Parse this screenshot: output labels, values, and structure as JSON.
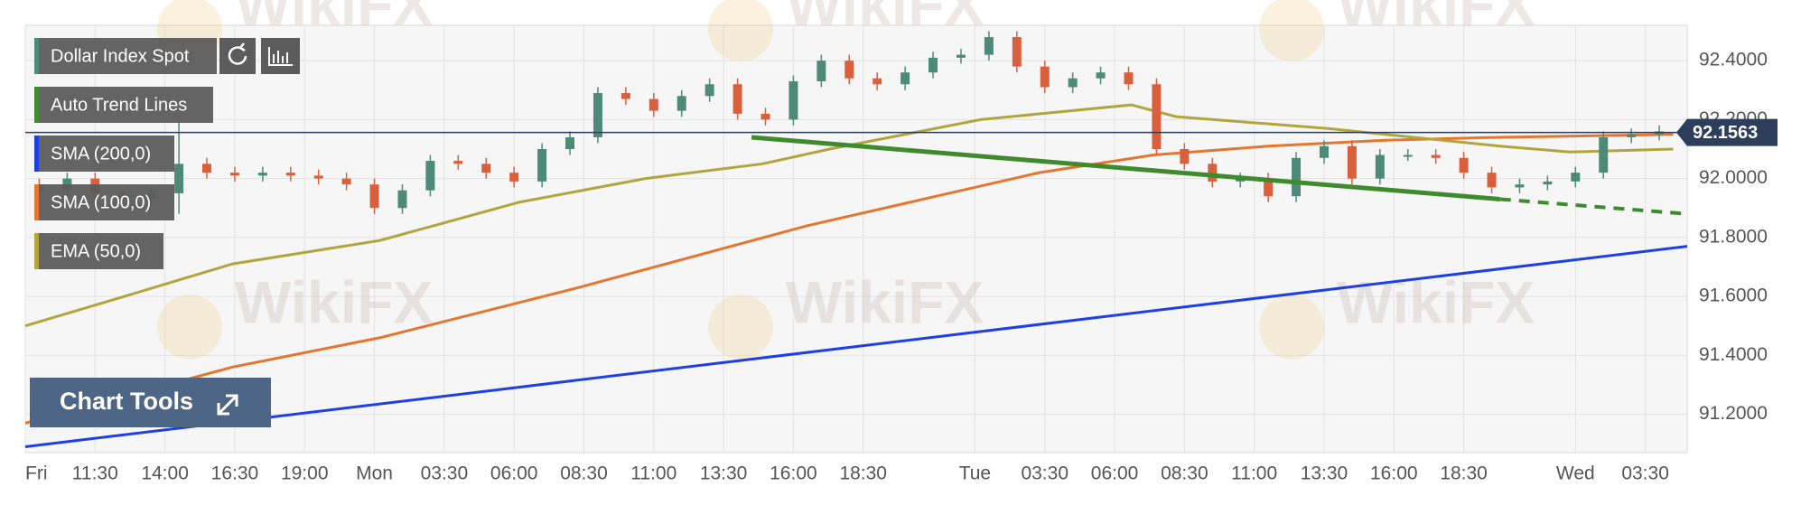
{
  "chart_data": {
    "type": "candlestick",
    "watermark": "WikiFX",
    "button": "Chart Tools",
    "xlim": [
      0,
      59.5
    ],
    "xticks": [
      {
        "value": 0,
        "label": "Fri"
      },
      {
        "value": 2.5,
        "label": "11:30"
      },
      {
        "value": 5,
        "label": "14:00"
      },
      {
        "value": 7.5,
        "label": "16:30"
      },
      {
        "value": 10,
        "label": "19:00"
      },
      {
        "value": 12.5,
        "label": "Mon"
      },
      {
        "value": 15,
        "label": "03:30"
      },
      {
        "value": 17.5,
        "label": "06:00"
      },
      {
        "value": 20,
        "label": "08:30"
      },
      {
        "value": 22.5,
        "label": "11:00"
      },
      {
        "value": 25,
        "label": "13:30"
      },
      {
        "value": 27.5,
        "label": "16:00"
      },
      {
        "value": 30,
        "label": "18:30"
      },
      {
        "value": 34,
        "label": "Tue"
      },
      {
        "value": 36.5,
        "label": "03:30"
      },
      {
        "value": 39,
        "label": "06:00"
      },
      {
        "value": 41.5,
        "label": "08:30"
      },
      {
        "value": 44,
        "label": "11:00"
      },
      {
        "value": 46.5,
        "label": "13:30"
      },
      {
        "value": 49,
        "label": "16:00"
      },
      {
        "value": 51.5,
        "label": "18:30"
      },
      {
        "value": 55.5,
        "label": "Wed"
      },
      {
        "value": 58,
        "label": "03:30"
      }
    ],
    "ylim": [
      91.07,
      92.52
    ],
    "yticks": [
      {
        "value": 91.2,
        "label": "91.2000"
      },
      {
        "value": 91.4,
        "label": "91.4000"
      },
      {
        "value": 91.6,
        "label": "91.6000"
      },
      {
        "value": 91.8,
        "label": "91.8000"
      },
      {
        "value": 92.0,
        "label": "92.0000"
      },
      {
        "value": 92.2,
        "label": "92.2000"
      },
      {
        "value": 92.4,
        "label": "92.4000"
      }
    ],
    "grid": true,
    "last_value": 92.1563,
    "last_color": "#2c3e5c",
    "series": [
      {
        "name": "Dollar Index Spot",
        "type": "candlestick",
        "color": "#4d8a78",
        "down_color": "#d9603e",
        "x": [
          0.5,
          1.5,
          2.5,
          3.5,
          4.5,
          5.5,
          6.5,
          7.5,
          8.5,
          9.5,
          10.5,
          11.5,
          12.5,
          13.5,
          14.5,
          15.5,
          16.5,
          17.5,
          18.5,
          19.5,
          20.5,
          21.5,
          22.5,
          23.5,
          24.5,
          25.5,
          26.5,
          27.5,
          28.5,
          29.5,
          30.5,
          31.5,
          32.5,
          33.5,
          34.5,
          35.5,
          36.5,
          37.5,
          38.5,
          39.5,
          40.5,
          41.5,
          42.5,
          43.5,
          44.5,
          45.5,
          46.5,
          47.5,
          48.5,
          49.5,
          50.5,
          51.5,
          52.5,
          53.5,
          54.5,
          55.5,
          56.5,
          57.5,
          58.5
        ],
        "open": [
          91.98,
          91.96,
          92.0,
          91.95,
          91.93,
          91.95,
          92.05,
          92.02,
          92.01,
          92.02,
          92.01,
          92.0,
          91.98,
          91.9,
          91.96,
          92.06,
          92.05,
          92.02,
          91.99,
          92.1,
          92.14,
          92.29,
          92.27,
          92.23,
          92.28,
          92.32,
          92.22,
          92.2,
          92.33,
          92.4,
          92.34,
          92.32,
          92.36,
          92.41,
          92.42,
          92.48,
          92.38,
          92.31,
          92.34,
          92.36,
          92.32,
          92.1,
          92.05,
          91.99,
          92.0,
          91.94,
          92.07,
          92.11,
          92.0,
          92.08,
          92.08,
          92.07,
          92.02,
          91.97,
          91.98,
          91.99,
          92.02,
          92.14,
          92.15
        ],
        "high": [
          92.0,
          92.02,
          92.02,
          91.97,
          91.97,
          92.21,
          92.07,
          92.04,
          92.04,
          92.04,
          92.03,
          92.02,
          92.0,
          91.98,
          92.08,
          92.08,
          92.07,
          92.04,
          92.12,
          92.16,
          92.31,
          92.31,
          92.29,
          92.3,
          92.34,
          92.34,
          92.24,
          92.35,
          92.42,
          92.42,
          92.36,
          92.38,
          92.43,
          92.44,
          92.5,
          92.5,
          92.4,
          92.36,
          92.38,
          92.38,
          92.34,
          92.12,
          92.07,
          92.02,
          92.02,
          92.09,
          92.13,
          92.13,
          92.1,
          92.1,
          92.1,
          92.09,
          92.04,
          92.0,
          92.01,
          92.04,
          92.16,
          92.17,
          92.18
        ],
        "low": [
          91.94,
          91.94,
          91.93,
          91.91,
          91.91,
          91.88,
          92.0,
          91.99,
          91.99,
          91.99,
          91.98,
          91.96,
          91.88,
          91.88,
          91.94,
          92.03,
          92.0,
          91.97,
          91.97,
          92.08,
          92.12,
          92.25,
          92.21,
          92.21,
          92.26,
          92.2,
          92.18,
          92.18,
          92.31,
          92.32,
          92.3,
          92.3,
          92.34,
          92.39,
          92.4,
          92.36,
          92.29,
          92.29,
          92.32,
          92.3,
          92.08,
          92.03,
          91.97,
          91.97,
          91.92,
          91.92,
          92.05,
          91.98,
          91.98,
          92.06,
          92.05,
          92.0,
          91.95,
          91.95,
          91.96,
          91.97,
          92.0,
          92.12,
          92.13
        ],
        "close": [
          91.96,
          92.0,
          91.95,
          91.93,
          91.95,
          92.05,
          92.02,
          92.01,
          92.02,
          92.01,
          92.0,
          91.98,
          91.9,
          91.96,
          92.06,
          92.05,
          92.02,
          91.99,
          92.1,
          92.14,
          92.29,
          92.27,
          92.23,
          92.28,
          92.32,
          92.22,
          92.2,
          92.33,
          92.4,
          92.34,
          92.32,
          92.36,
          92.41,
          92.42,
          92.48,
          92.38,
          92.31,
          92.34,
          92.36,
          92.32,
          92.1,
          92.05,
          91.99,
          92.0,
          91.94,
          92.07,
          92.11,
          92.0,
          92.08,
          92.08,
          92.07,
          92.02,
          91.97,
          91.98,
          91.99,
          92.02,
          92.14,
          92.15,
          92.16
        ]
      },
      {
        "name": "Auto Trend Lines",
        "type": "line",
        "color": "#3f8a2c",
        "width": 5,
        "x": [
          26.0,
          52.8
        ],
        "values": [
          92.14,
          91.93
        ],
        "projection": {
          "x": [
            52.8,
            59.5
          ],
          "values": [
            91.93,
            91.88
          ]
        }
      },
      {
        "name": "SMA (200,0)",
        "type": "line",
        "color": "#1f3fe6",
        "width": 3,
        "x": [
          0,
          59.5
        ],
        "values": [
          91.09,
          91.77
        ]
      },
      {
        "name": "SMA (100,0)",
        "type": "line",
        "color": "#e4762f",
        "width": 3,
        "x": [
          0,
          7.4,
          12.7,
          19.8,
          28,
          36.3,
          40.4,
          44.5,
          48.7,
          52.8,
          59
        ],
        "values": [
          91.17,
          91.36,
          91.46,
          91.63,
          91.84,
          92.02,
          92.08,
          92.11,
          92.13,
          92.14,
          92.15
        ]
      },
      {
        "name": "EMA (50,0)",
        "type": "line",
        "color": "#b3a53e",
        "width": 3,
        "x": [
          0,
          3.2,
          7.4,
          12.7,
          17.7,
          22.2,
          26.4,
          28.8,
          34.2,
          39.6,
          41.2,
          46.6,
          52.8,
          55.3,
          59
        ],
        "values": [
          91.5,
          91.59,
          91.71,
          91.79,
          91.92,
          92.0,
          92.05,
          92.1,
          92.2,
          92.25,
          92.21,
          92.17,
          92.11,
          92.09,
          92.1
        ]
      }
    ]
  }
}
